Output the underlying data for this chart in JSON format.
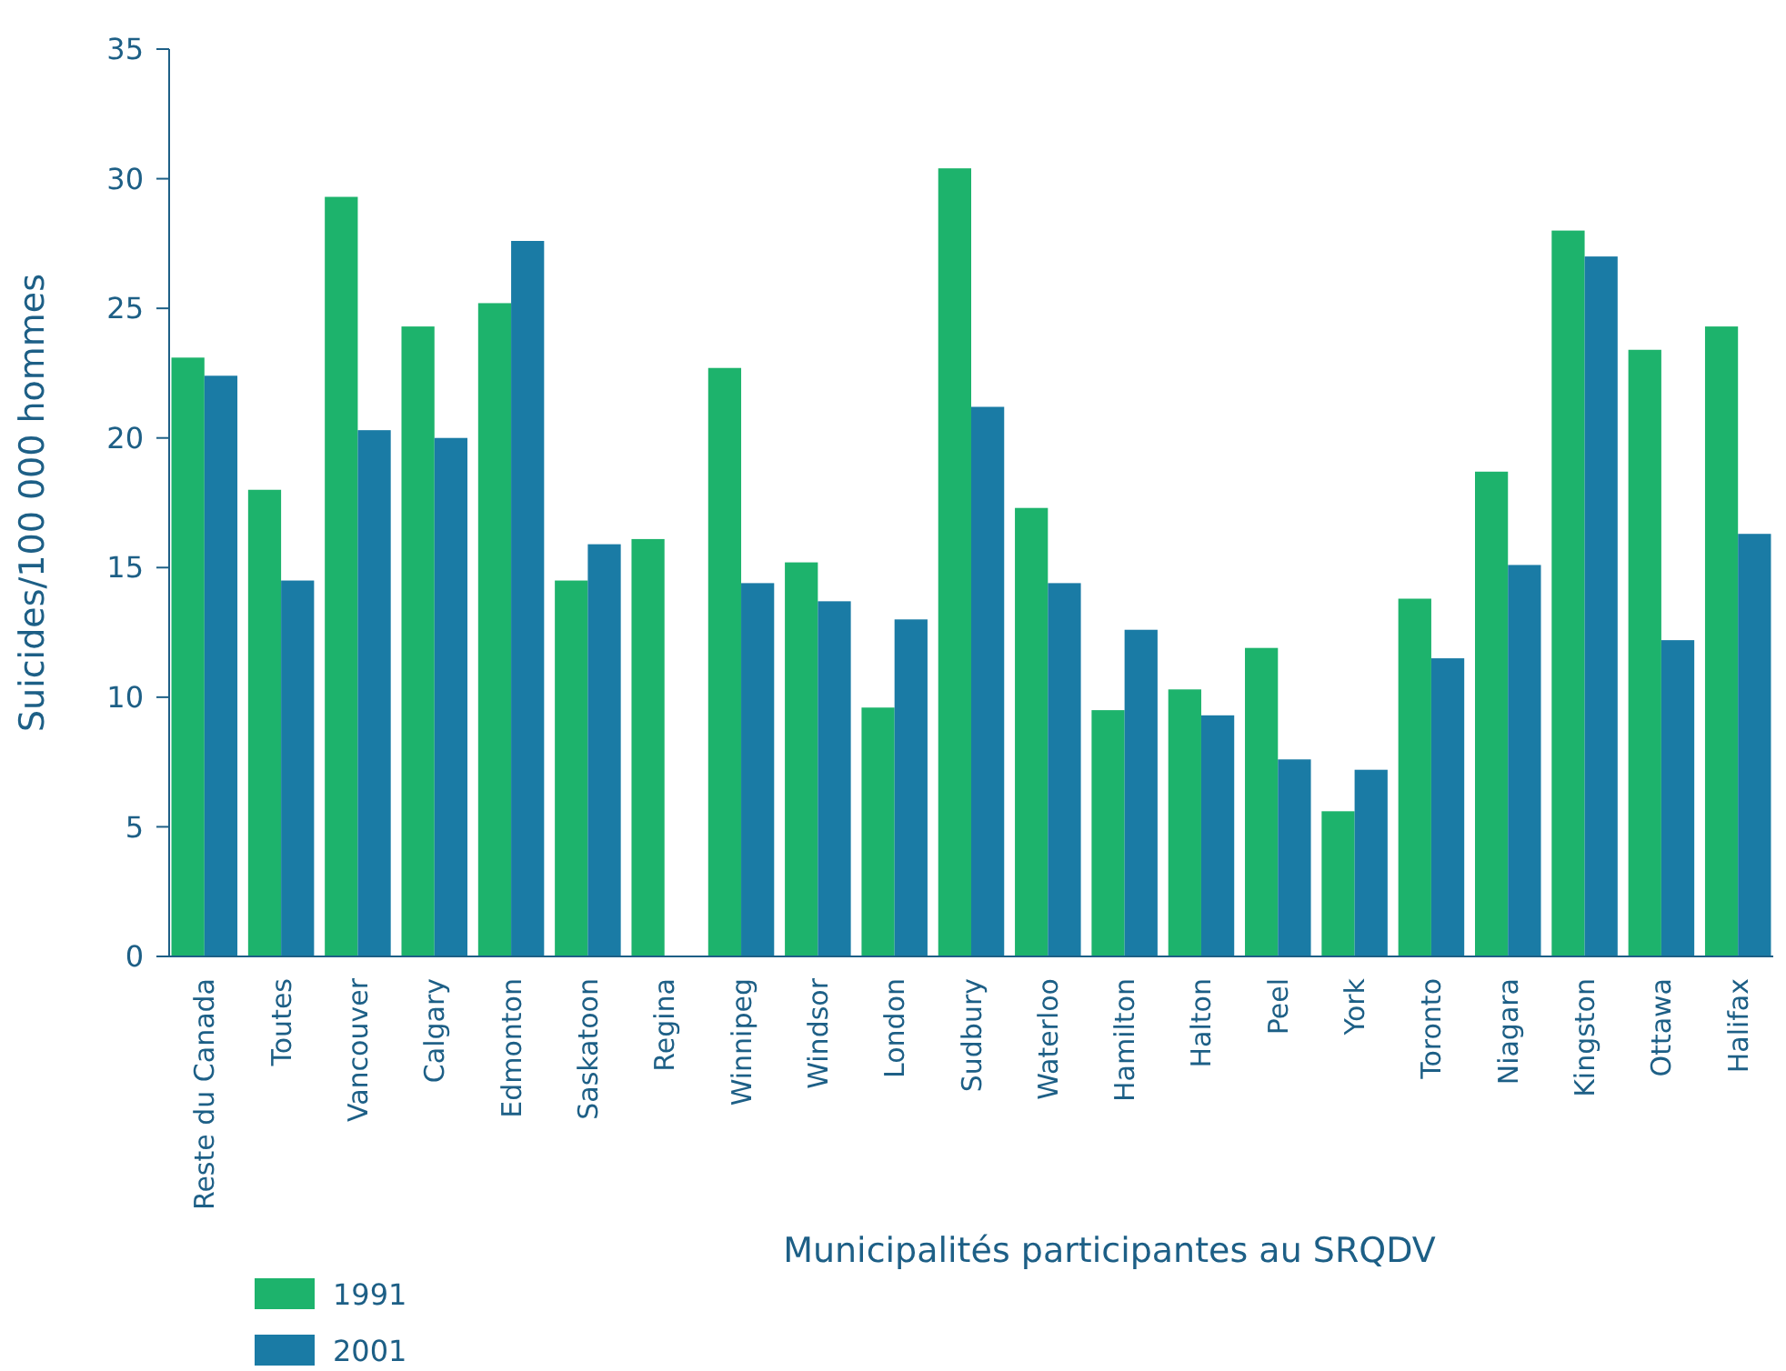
{
  "chart_data": {
    "type": "bar",
    "xlabel": "Municipalités participantes au SRQDV",
    "ylabel": "Suicides/100 000 hommes",
    "categories": [
      "Reste du Canada",
      "Toutes",
      "Vancouver",
      "Calgary",
      "Edmonton",
      "Saskatoon",
      "Regina",
      "Winnipeg",
      "Windsor",
      "London",
      "Sudbury",
      "Waterloo",
      "Hamilton",
      "Halton",
      "Peel",
      "York",
      "Toronto",
      "Niagara",
      "Kingston",
      "Ottawa",
      "Halifax"
    ],
    "series": [
      {
        "name": "1991",
        "color": "#1db36c",
        "values": [
          23.1,
          18.0,
          29.3,
          24.3,
          25.2,
          14.5,
          16.1,
          22.7,
          15.2,
          9.6,
          30.4,
          17.3,
          9.5,
          10.3,
          11.9,
          5.6,
          13.8,
          18.7,
          28.0,
          23.4,
          24.3
        ]
      },
      {
        "name": "2001",
        "color": "#1a7ba5",
        "values": [
          22.4,
          14.5,
          20.3,
          20.0,
          27.6,
          15.9,
          null,
          14.4,
          13.7,
          13.0,
          21.2,
          14.4,
          12.6,
          9.3,
          7.6,
          7.2,
          11.5,
          15.1,
          27.0,
          12.2,
          16.3
        ]
      }
    ],
    "ylim": [
      0,
      35
    ],
    "yticks": [
      0,
      5,
      10,
      15,
      20,
      25,
      30,
      35
    ],
    "grid": false,
    "legend": "bottom left"
  }
}
